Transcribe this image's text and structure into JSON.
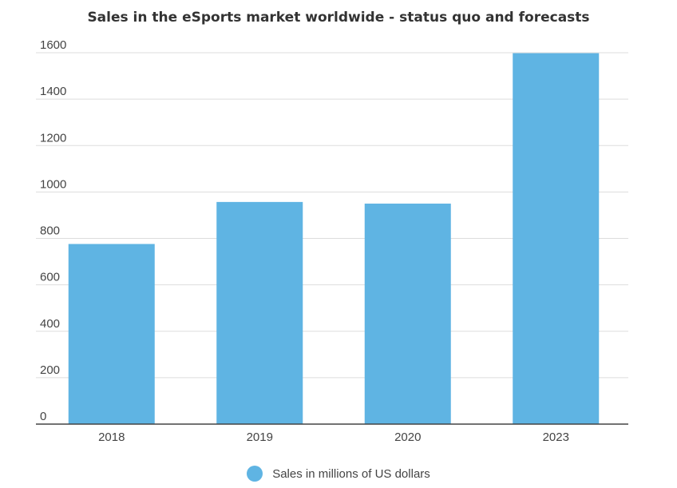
{
  "chart_data": {
    "type": "bar",
    "title": "Sales in the eSports market worldwide - status quo and forecasts",
    "categories": [
      "2018",
      "2019",
      "2020",
      "2023"
    ],
    "series": [
      {
        "name": "Sales in millions of US dollars",
        "values": [
          776,
          957,
          950,
          1598
        ]
      }
    ],
    "ylim": [
      0,
      1600
    ],
    "yticks": [
      0,
      200,
      400,
      600,
      800,
      1000,
      1200,
      1400,
      1600
    ],
    "xlabel": "",
    "ylabel": "",
    "grid": true,
    "legend_position": "bottom",
    "bar_color": "#5fb4e3",
    "grid_color": "#dddddd",
    "axis_color": "#444444"
  }
}
